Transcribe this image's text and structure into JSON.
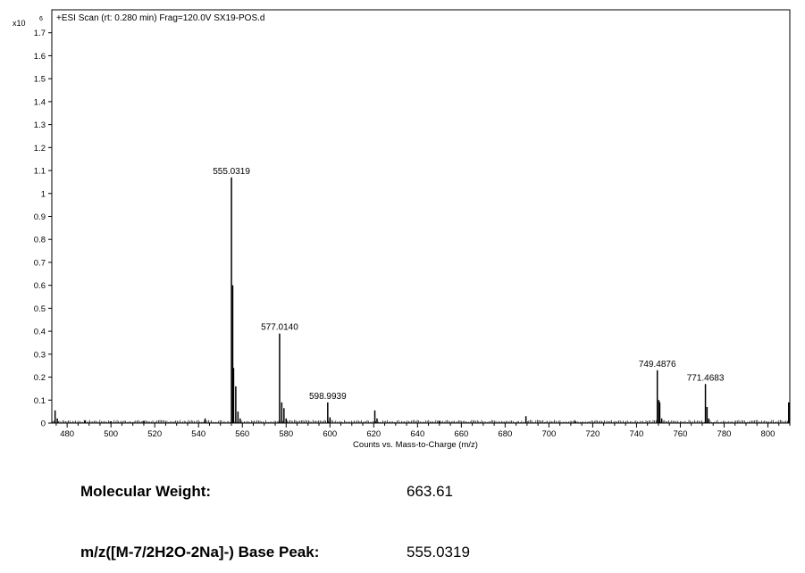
{
  "chart_data": {
    "type": "line",
    "title": "+ESI Scan (rt: 0.280 min) Frag=120.0V SX19-POS.d",
    "y_scale_label": "x10",
    "y_scale_exponent": "6",
    "xlabel": "Counts vs. Mass-to-Charge (m/z)",
    "ylabel": "",
    "xlim": [
      473,
      810
    ],
    "ylim": [
      0,
      1.8
    ],
    "x_ticks": [
      480,
      500,
      520,
      540,
      560,
      580,
      600,
      620,
      640,
      660,
      680,
      700,
      720,
      740,
      760,
      780,
      800
    ],
    "x_tick_labels": [
      "480",
      "500",
      "520",
      "540",
      "560",
      "580",
      "600",
      "620",
      "640",
      "660",
      "680",
      "700",
      "720",
      "740",
      "760",
      "780",
      "800"
    ],
    "y_ticks": [
      0,
      0.1,
      0.2,
      0.3,
      0.4,
      0.5,
      0.6,
      0.7,
      0.8,
      0.9,
      1,
      1.1,
      1.2,
      1.3,
      1.4,
      1.5,
      1.6,
      1.7
    ],
    "y_tick_labels": [
      "0",
      "0.1",
      "0.2",
      "0.3",
      "0.4",
      "0.5",
      "0.6",
      "0.7",
      "0.8",
      "0.9",
      "1",
      "1.1",
      "1.2",
      "1.3",
      "1.4",
      "1.5",
      "1.6",
      "1.7"
    ],
    "grid": false,
    "peaks": [
      {
        "mz": 474.5,
        "intensity": 0.055
      },
      {
        "mz": 475.5,
        "intensity": 0.02
      },
      {
        "mz": 488,
        "intensity": 0.01
      },
      {
        "mz": 500,
        "intensity": 0.008
      },
      {
        "mz": 515,
        "intensity": 0.01
      },
      {
        "mz": 543,
        "intensity": 0.02
      },
      {
        "mz": 555.0319,
        "intensity": 1.07
      },
      {
        "mz": 555.6,
        "intensity": 0.6
      },
      {
        "mz": 556.0,
        "intensity": 0.24
      },
      {
        "mz": 557.0,
        "intensity": 0.16
      },
      {
        "mz": 558.0,
        "intensity": 0.05
      },
      {
        "mz": 559.0,
        "intensity": 0.02
      },
      {
        "mz": 577.014,
        "intensity": 0.39
      },
      {
        "mz": 578.0,
        "intensity": 0.09
      },
      {
        "mz": 579.0,
        "intensity": 0.065
      },
      {
        "mz": 580.0,
        "intensity": 0.02
      },
      {
        "mz": 598.9939,
        "intensity": 0.09
      },
      {
        "mz": 600.0,
        "intensity": 0.025
      },
      {
        "mz": 620.5,
        "intensity": 0.055
      },
      {
        "mz": 621.5,
        "intensity": 0.02
      },
      {
        "mz": 650,
        "intensity": 0.008
      },
      {
        "mz": 689.5,
        "intensity": 0.03
      },
      {
        "mz": 712,
        "intensity": 0.01
      },
      {
        "mz": 749.4876,
        "intensity": 0.23
      },
      {
        "mz": 750.2,
        "intensity": 0.1
      },
      {
        "mz": 750.6,
        "intensity": 0.09
      },
      {
        "mz": 751.5,
        "intensity": 0.02
      },
      {
        "mz": 771.4683,
        "intensity": 0.17
      },
      {
        "mz": 772.2,
        "intensity": 0.07
      },
      {
        "mz": 773.0,
        "intensity": 0.02
      },
      {
        "mz": 809.5,
        "intensity": 0.09
      }
    ],
    "peak_labels": [
      {
        "mz": 555.0319,
        "intensity": 1.07,
        "text": "555.0319"
      },
      {
        "mz": 577.014,
        "intensity": 0.39,
        "text": "577.0140"
      },
      {
        "mz": 598.9939,
        "intensity": 0.09,
        "text": "598.9939"
      },
      {
        "mz": 749.4876,
        "intensity": 0.23,
        "text": "749.4876"
      },
      {
        "mz": 771.4683,
        "intensity": 0.17,
        "text": "771.4683"
      }
    ]
  },
  "info": {
    "mw_label": "Molecular Weight:",
    "mw_value": "663.61",
    "base_peak_label": "m/z([M-7/2H2O-2Na]-) Base Peak:",
    "base_peak_value": "555.0319"
  }
}
